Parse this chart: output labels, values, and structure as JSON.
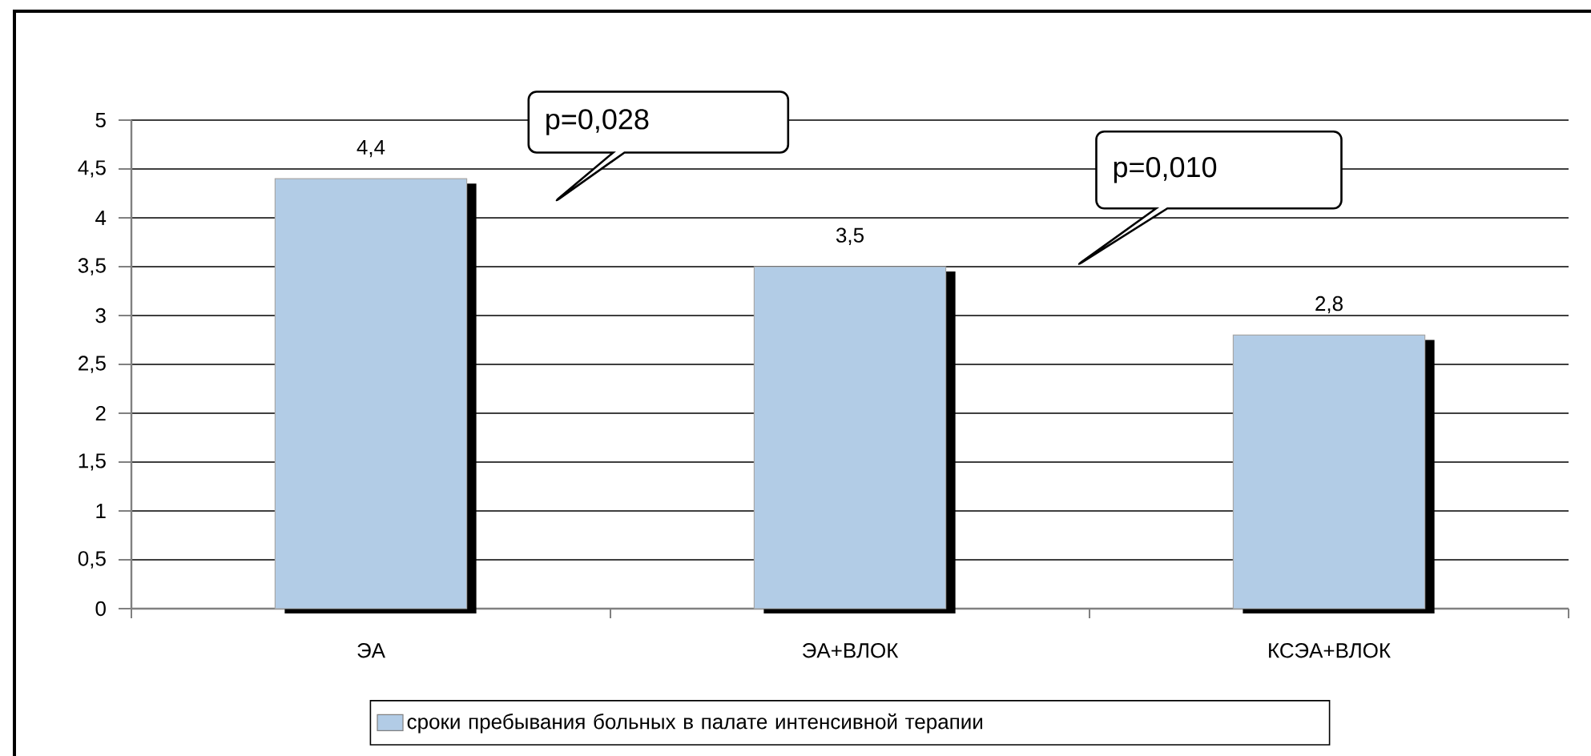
{
  "chart_data": {
    "type": "bar",
    "categories": [
      "ЭА",
      "ЭА+ВЛОК",
      "КСЭА+ВЛОК"
    ],
    "series": [
      {
        "name": "сроки пребывания больных в палате интенсивной терапии",
        "color": "#b2cce6",
        "values": [
          4.4,
          3.5,
          2.8
        ],
        "value_labels": [
          "4,4",
          "3,5",
          "2,8"
        ]
      }
    ],
    "ylim": [
      0,
      5
    ],
    "yticks": [
      0,
      {
        "value": 0.5,
        "label": "0,5"
      },
      1,
      {
        "value": 1.5,
        "label": "1,5"
      },
      2,
      {
        "value": 2.5,
        "label": "2,5"
      },
      3,
      {
        "value": 3.5,
        "label": "3,5"
      },
      4,
      {
        "value": 4.5,
        "label": "4,5"
      },
      5
    ],
    "grid": "y",
    "legend": "bottom",
    "annotations": [
      "p=0,028",
      "p=0,010"
    ]
  }
}
